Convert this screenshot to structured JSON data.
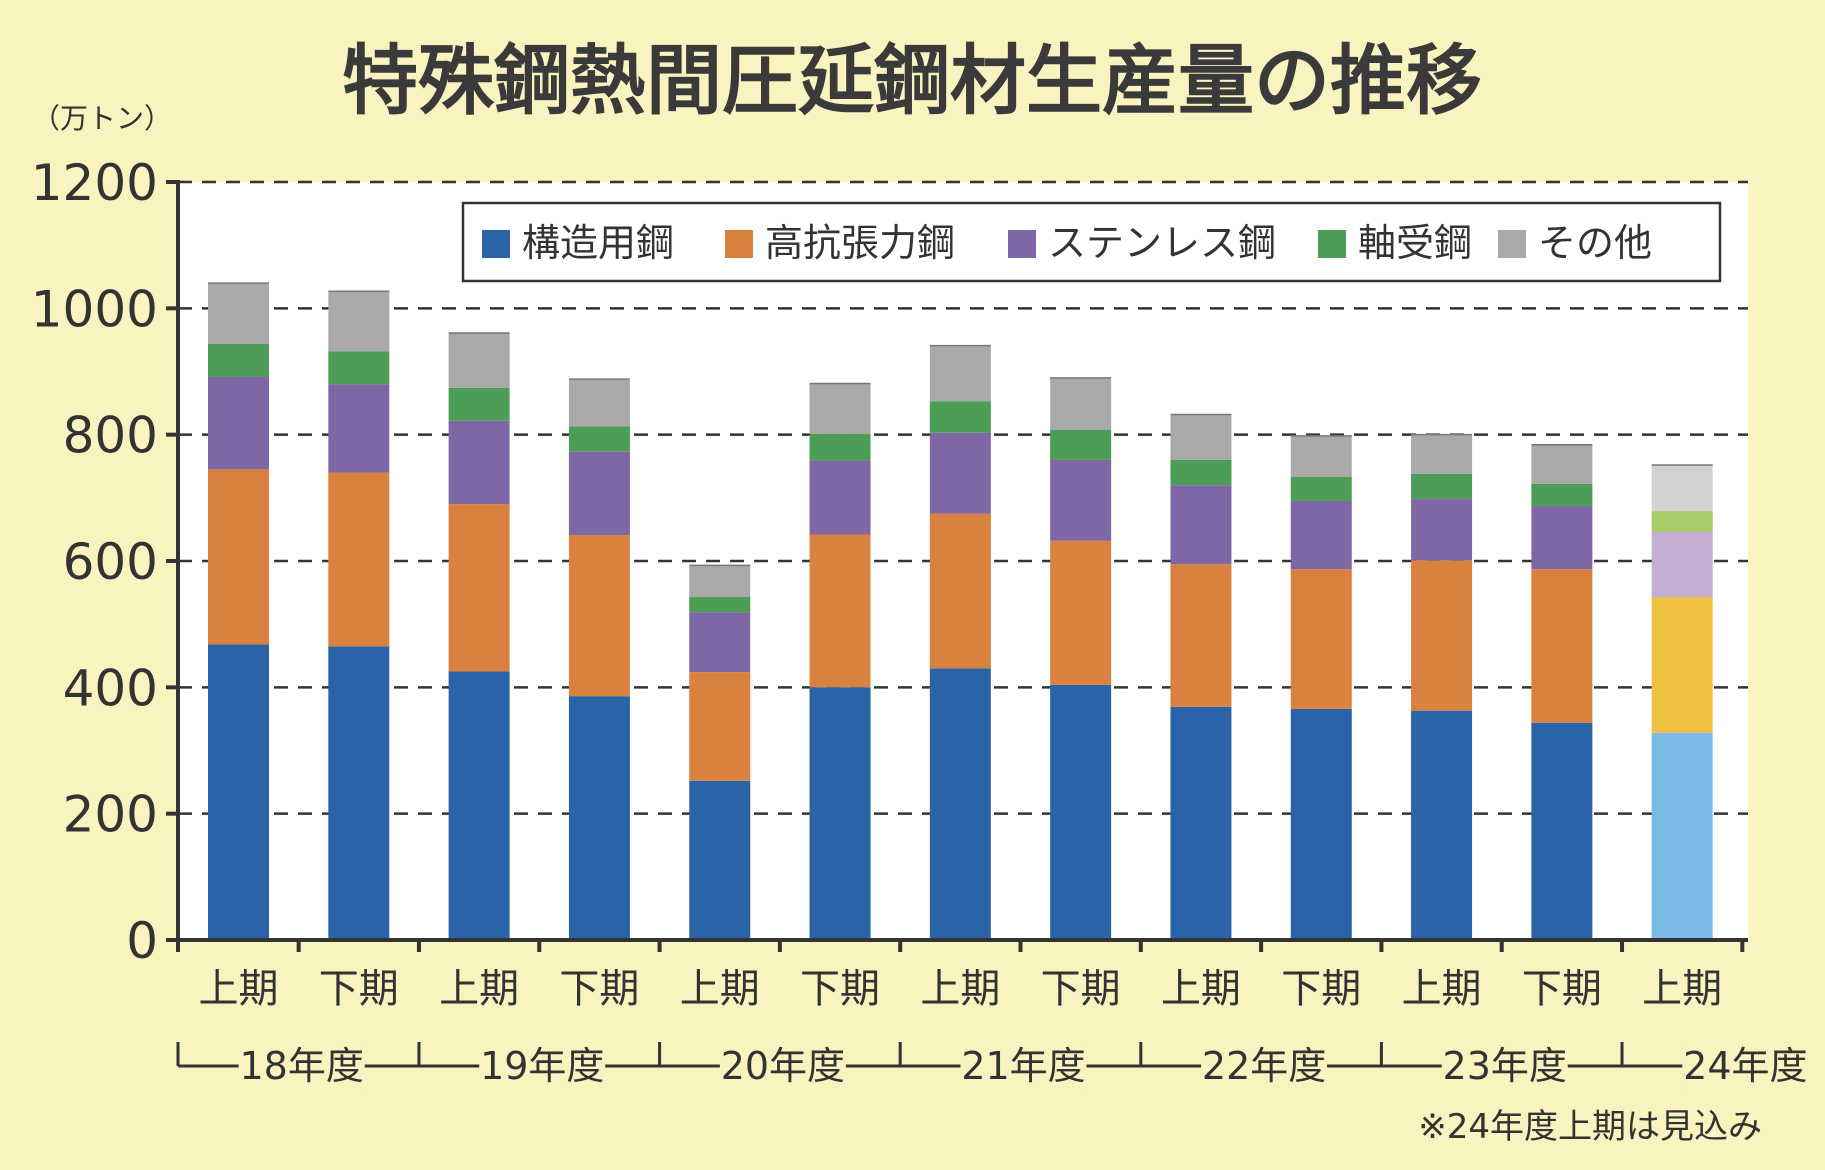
{
  "title": "特殊鋼熱間圧延鋼材生産量の推移",
  "unit_label": "（万トン）",
  "note": "※24年度上期は見込み",
  "colors": {
    "background": "#f8f3bf",
    "plot_bg": "#ffffff",
    "series": [
      "#2a63a8",
      "#d9823f",
      "#7f67a6",
      "#4c9e57",
      "#a9a9a9"
    ],
    "forecast": [
      "#7bb9e6",
      "#f0c040",
      "#c4aed4",
      "#a8cc6a",
      "#d2d2d2"
    ]
  },
  "chart_data": {
    "type": "bar",
    "stacked": true,
    "title": "特殊鋼熱間圧延鋼材生産量の推移",
    "ylabel": "（万トン）",
    "ylim": [
      0,
      1200
    ],
    "yticks": [
      0,
      200,
      400,
      600,
      800,
      1000,
      1200
    ],
    "grid": true,
    "legend_position": "top-right",
    "categories": [
      "上期",
      "下期",
      "上期",
      "下期",
      "上期",
      "下期",
      "上期",
      "下期",
      "上期",
      "下期",
      "上期",
      "下期",
      "上期"
    ],
    "groups": [
      "18年度",
      "19年度",
      "20年度",
      "21年度",
      "22年度",
      "23年度",
      "24年度"
    ],
    "series": [
      {
        "name": "構造用鋼",
        "values": [
          468,
          465,
          425,
          386,
          252,
          400,
          430,
          404,
          369,
          366,
          363,
          344,
          328
        ]
      },
      {
        "name": "高抗張力鋼",
        "values": [
          277,
          275,
          265,
          255,
          172,
          242,
          245,
          228,
          226,
          221,
          238,
          243,
          215
        ]
      },
      {
        "name": "ステンレス鋼",
        "values": [
          147,
          140,
          132,
          132,
          95,
          117,
          128,
          128,
          125,
          108,
          97,
          100,
          103
        ]
      },
      {
        "name": "軸受鋼",
        "values": [
          52,
          52,
          52,
          40,
          24,
          42,
          50,
          48,
          40,
          38,
          40,
          35,
          33
        ]
      },
      {
        "name": "その他",
        "values": [
          96,
          95,
          87,
          75,
          50,
          80,
          88,
          82,
          72,
          65,
          62,
          62,
          73
        ]
      }
    ],
    "forecast_index": 12
  }
}
